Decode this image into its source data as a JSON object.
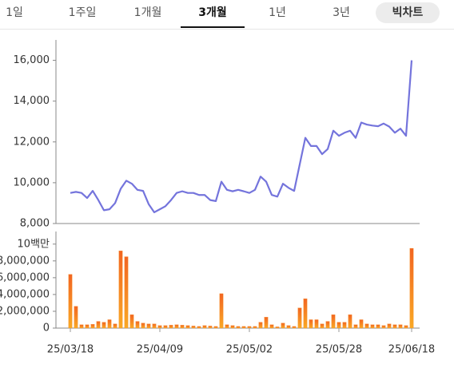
{
  "tabs": [
    "1일",
    "1주일",
    "1개월",
    "3개월",
    "1년",
    "3년"
  ],
  "selected_tab": 3,
  "big_chart_button": "빅차트",
  "chart_data": [
    {
      "type": "line",
      "color": "#7474dc",
      "values": [
        9500,
        9550,
        9500,
        9250,
        9600,
        9150,
        8650,
        8700,
        9000,
        9700,
        10100,
        9950,
        9650,
        9600,
        8950,
        8550,
        8700,
        8850,
        9150,
        9500,
        9580,
        9500,
        9500,
        9400,
        9400,
        9150,
        9100,
        10050,
        9650,
        9580,
        9650,
        9580,
        9500,
        9650,
        10300,
        10050,
        9400,
        9320,
        9950,
        9750,
        9600,
        10900,
        12200,
        11800,
        11800,
        11400,
        11650,
        12550,
        12300,
        12450,
        12550,
        12200,
        12950,
        12850,
        12800,
        12770,
        12900,
        12750,
        12450,
        12650,
        12300,
        16000
      ],
      "ylim": [
        8000,
        17000
      ],
      "yticks": [
        {
          "value": 8000,
          "label": "8,000"
        },
        {
          "value": 10000,
          "label": "10,000"
        },
        {
          "value": 12000,
          "label": "12,000"
        },
        {
          "value": 14000,
          "label": "14,000"
        },
        {
          "value": 16000,
          "label": "16,000"
        }
      ]
    },
    {
      "type": "bar",
      "color": "#f7901e",
      "categories": [
        "25/03/18",
        null,
        null,
        null,
        null,
        null,
        null,
        null,
        null,
        null,
        null,
        null,
        null,
        null,
        null,
        null,
        "25/04/09",
        null,
        null,
        null,
        null,
        null,
        null,
        null,
        null,
        null,
        null,
        null,
        null,
        null,
        null,
        null,
        "25/05/02",
        null,
        null,
        null,
        null,
        null,
        null,
        null,
        null,
        null,
        null,
        null,
        null,
        null,
        null,
        null,
        "25/05/28",
        null,
        null,
        null,
        null,
        null,
        null,
        null,
        null,
        null,
        null,
        null,
        null,
        "25/06/18"
      ],
      "values": [
        6400000,
        2600000,
        400000,
        400000,
        450000,
        800000,
        700000,
        1000000,
        500000,
        9200000,
        8500000,
        1600000,
        800000,
        600000,
        500000,
        500000,
        300000,
        300000,
        350000,
        400000,
        350000,
        300000,
        250000,
        200000,
        300000,
        250000,
        200000,
        4100000,
        400000,
        300000,
        200000,
        200000,
        200000,
        200000,
        700000,
        1300000,
        400000,
        150000,
        600000,
        300000,
        200000,
        2400000,
        3500000,
        1000000,
        1000000,
        500000,
        800000,
        1600000,
        700000,
        700000,
        1600000,
        400000,
        1000000,
        500000,
        400000,
        400000,
        300000,
        500000,
        400000,
        400000,
        300000,
        9500000
      ],
      "ylim": [
        0,
        11500000
      ],
      "yticks": [
        0,
        {
          "value": 2000000,
          "label": "2,000,000"
        },
        {
          "value": 4000000,
          "label": "4,000,000"
        },
        {
          "value": 6000000,
          "label": "6,000,000"
        },
        {
          "value": 8000000,
          "label": "8,000,000"
        },
        {
          "value": 10000000,
          "label": "10백만"
        }
      ]
    }
  ]
}
